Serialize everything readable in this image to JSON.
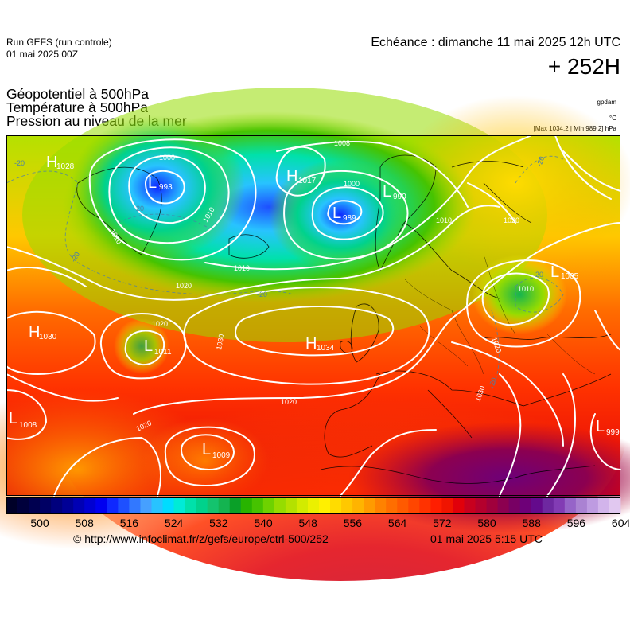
{
  "header": {
    "run_label": "Run GEFS (run controle)",
    "run_date": "01 mai 2025 00Z",
    "valid_label": "Echéance : dimanche 11 mai 2025 12h UTC",
    "lead": "+ 252H"
  },
  "titles": {
    "line1": "Géopotentiel à 500hPa",
    "line2": "Température à 500hPa",
    "line3": "Pression au niveau de la mer"
  },
  "units": {
    "geopotential": "gpdam",
    "temperature": "°C",
    "pressure_stats": "[Max 1034.2 | Min 989.2] hPa"
  },
  "pressure_centers": [
    {
      "type": "H",
      "value": "1028"
    },
    {
      "type": "L",
      "value": "993"
    },
    {
      "type": "H",
      "value": "1017"
    },
    {
      "type": "L",
      "value": "990"
    },
    {
      "type": "L",
      "value": "989"
    },
    {
      "type": "L",
      "value": "1005"
    },
    {
      "type": "H",
      "value": "1030"
    },
    {
      "type": "L",
      "value": "1011"
    },
    {
      "type": "H",
      "value": "1034"
    },
    {
      "type": "L",
      "value": "1008"
    },
    {
      "type": "L",
      "value": "1009"
    },
    {
      "type": "L",
      "value": "999"
    }
  ],
  "isobar_labels": [
    "1000",
    "1000",
    "1008",
    "1010",
    "1010",
    "1010",
    "1010",
    "1010",
    "1020",
    "1020",
    "1020",
    "1020",
    "1020",
    "1020",
    "1030",
    "1030"
  ],
  "isotherm_labels": [
    "-20",
    "-20",
    "-20",
    "-20",
    "-20",
    "-20",
    "-20"
  ],
  "colorbar": {
    "tick_labels": [
      "500",
      "508",
      "516",
      "524",
      "532",
      "540",
      "548",
      "556",
      "564",
      "572",
      "580",
      "588",
      "596",
      "604"
    ],
    "colors": [
      "#000028",
      "#00003c",
      "#000050",
      "#000064",
      "#00007d",
      "#000096",
      "#0000b4",
      "#0000d2",
      "#0000f0",
      "#0f28ff",
      "#1e50ff",
      "#3278ff",
      "#46a0ff",
      "#28c3ff",
      "#00dcff",
      "#00ebd7",
      "#00e1aa",
      "#00d28c",
      "#14c36e",
      "#14b450",
      "#0aa028",
      "#28b400",
      "#46c300",
      "#6ed200",
      "#96dc00",
      "#b4e100",
      "#d2eb00",
      "#ebf000",
      "#fff000",
      "#ffdc00",
      "#ffc800",
      "#ffb400",
      "#ff9b00",
      "#ff8200",
      "#ff6e00",
      "#ff5a00",
      "#ff4600",
      "#ff3200",
      "#ff1e00",
      "#f01400",
      "#e1000a",
      "#c8001e",
      "#b4002d",
      "#a0003c",
      "#8c0050",
      "#780064",
      "#6e0078",
      "#640a8c",
      "#6e28a0",
      "#823cb4",
      "#9664c8",
      "#aa82d2",
      "#be9be1",
      "#d2b4eb",
      "#e1c8f0"
    ]
  },
  "footer": {
    "credit": "© http://www.infoclimat.fr/z/gefs/europe/ctrl-500/252",
    "generated": "01 mai 2025  5:15 UTC"
  }
}
